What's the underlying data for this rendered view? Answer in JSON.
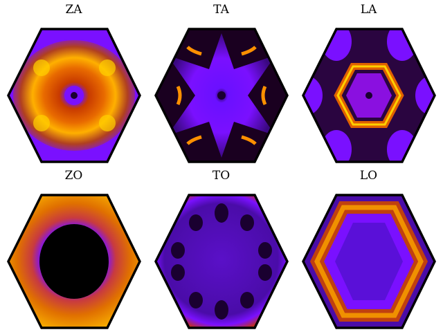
{
  "figure": {
    "panels": [
      {
        "label": "ZA"
      },
      {
        "label": "TA"
      },
      {
        "label": "LA"
      },
      {
        "label": "ZO"
      },
      {
        "label": "TO"
      },
      {
        "label": "LO"
      }
    ]
  },
  "colors": {
    "black": "#000000",
    "violet": "#7a10ff",
    "purple": "#5a0fd8",
    "dark_purple": "#2a0550",
    "orange": "#e06000",
    "yellow": "#ffd000",
    "outline": "#000000"
  }
}
